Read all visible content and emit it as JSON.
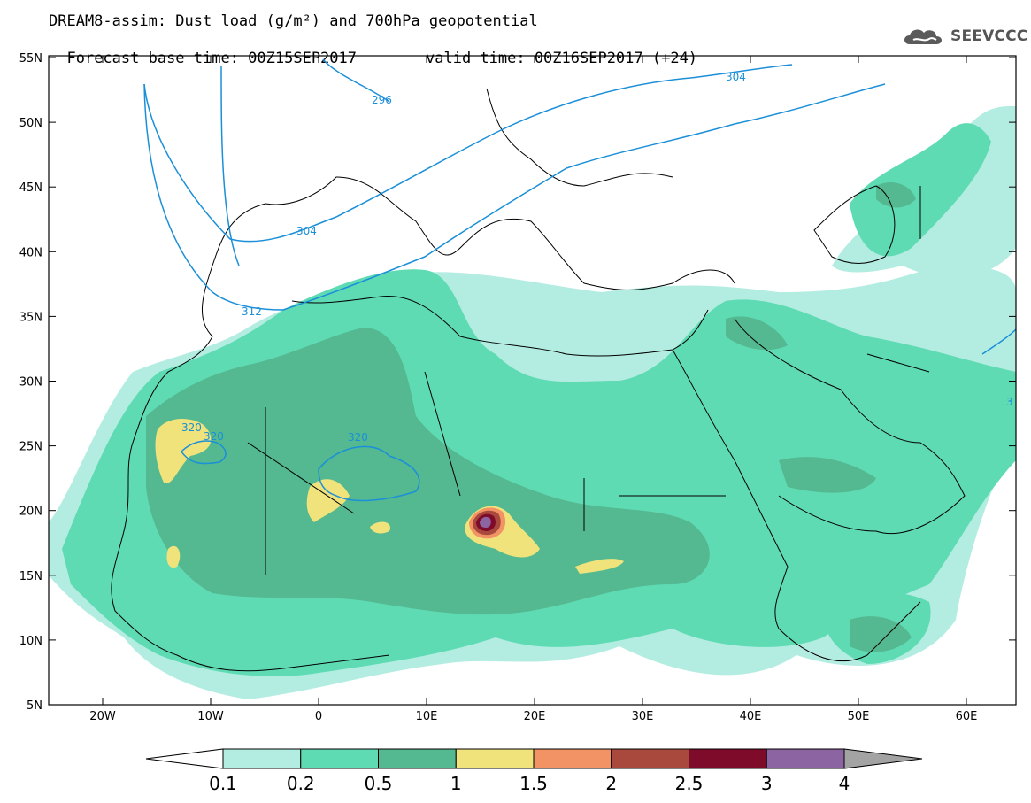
{
  "header": {
    "title_line1": "DREAM8-assim: Dust load (g/m²) and 700hPa geopotential",
    "title_line2": "Forecast base time: 00Z15SEP2017",
    "valid_time": "valid time: 00Z16SEP2017 (+24)"
  },
  "logo": {
    "text": "SEEVCCC",
    "icon": "cloud-icon"
  },
  "map": {
    "lon_ticks": [
      "20W",
      "10W",
      "0",
      "10E",
      "20E",
      "30E",
      "40E",
      "50E",
      "60E"
    ],
    "lat_ticks": [
      "55N",
      "50N",
      "45N",
      "40N",
      "35N",
      "30N",
      "25N",
      "20N",
      "15N",
      "10N",
      "5N"
    ],
    "contour_labels": [
      "304",
      "296",
      "304",
      "312",
      "320",
      "320",
      "320",
      "3"
    ]
  },
  "colorbar": {
    "labels": [
      "0.1",
      "0.2",
      "0.5",
      "1",
      "1.5",
      "2",
      "2.5",
      "3",
      "4"
    ],
    "colors": [
      "#b3ede1",
      "#5fdbb4",
      "#54b991",
      "#f1e37b",
      "#f19365",
      "#a9483d",
      "#7f0b2b",
      "#8c64a1",
      "#a3a3a3"
    ]
  },
  "colors": {
    "contour": "#1b8fd8",
    "land_border": "#000000"
  }
}
